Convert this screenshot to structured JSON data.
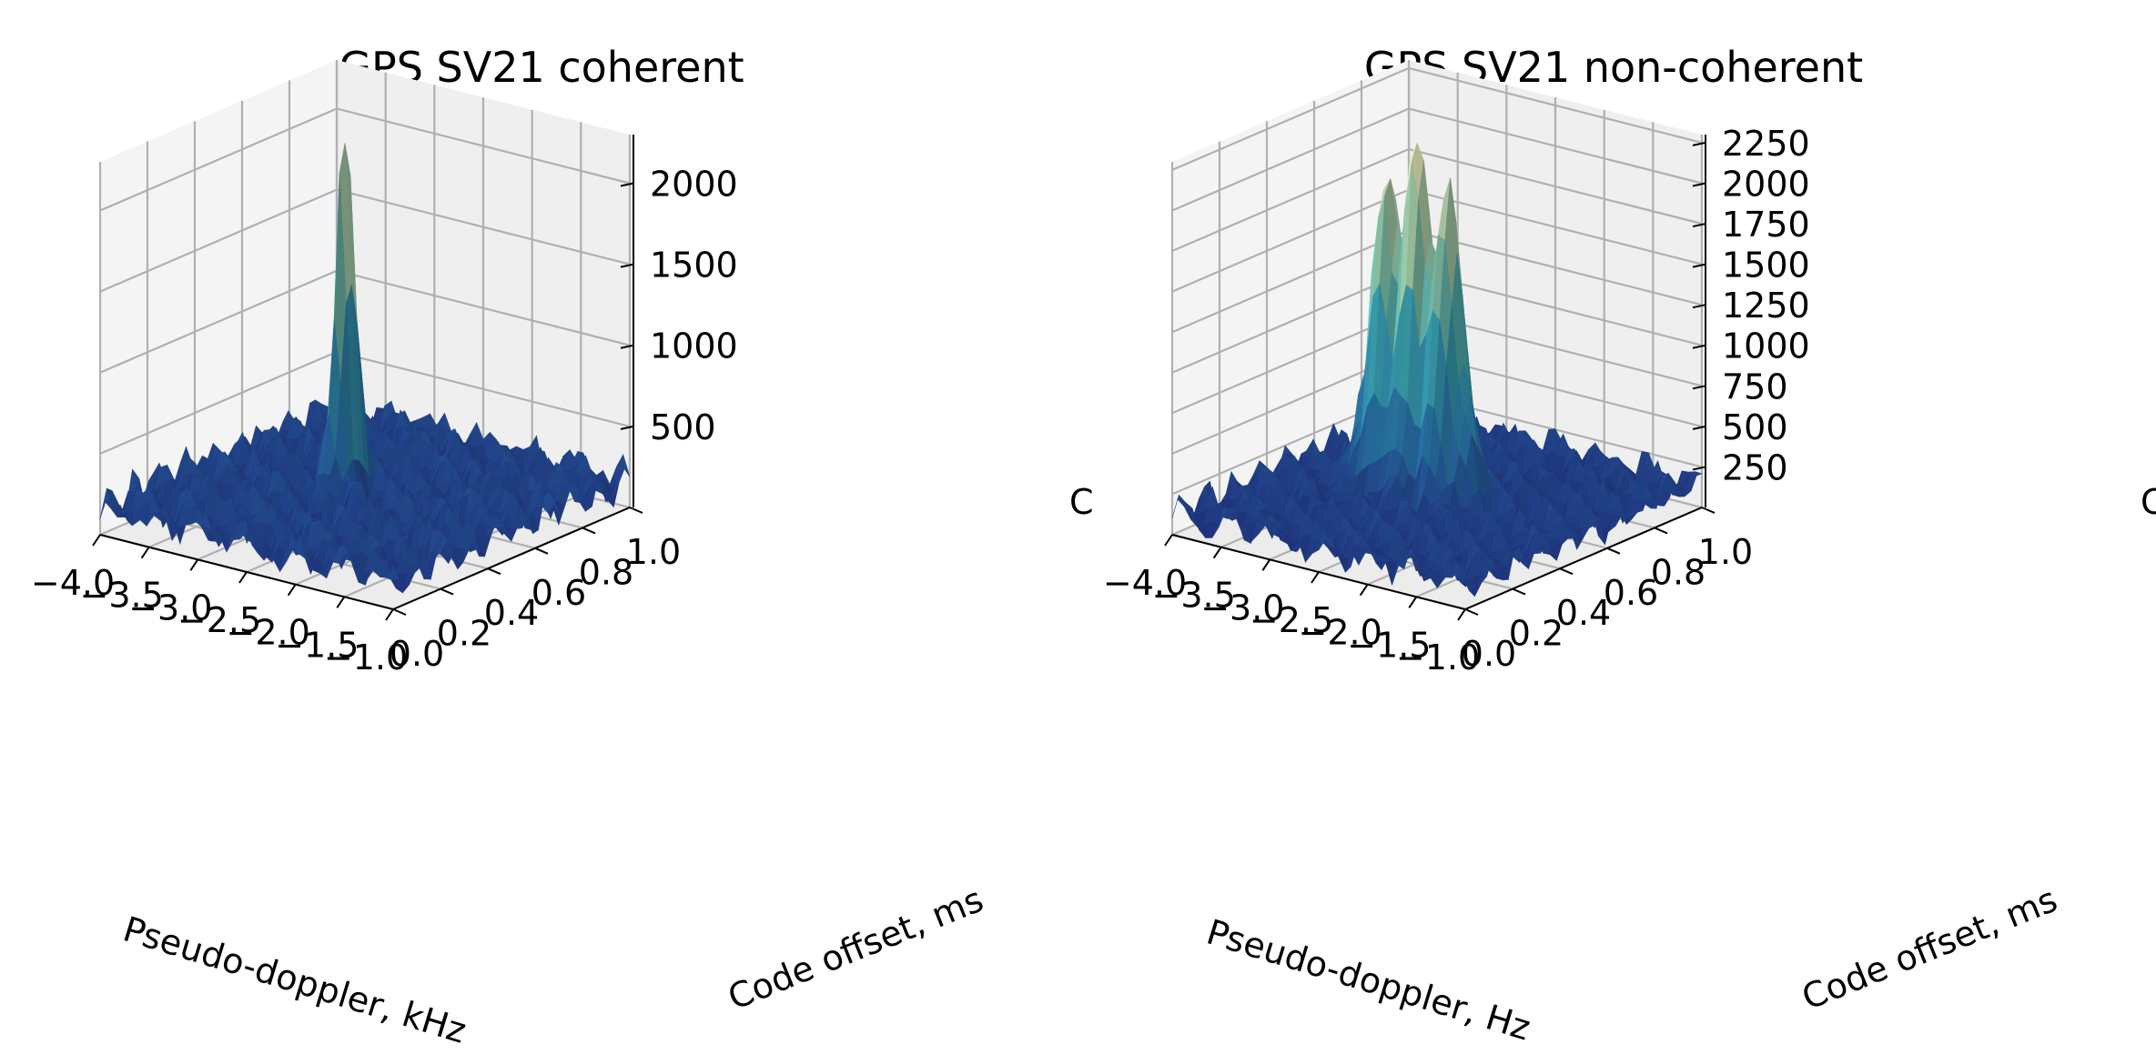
{
  "figure": {
    "background": "#ffffff",
    "pane_color": "#f2f2f2",
    "grid_color": "#b0b0b0",
    "colormap": [
      "#253494",
      "#2c7fb8",
      "#41b6c4",
      "#a1dab4",
      "#ffffcc"
    ]
  },
  "chart_data": [
    {
      "type": "surface",
      "title": "GPS SV21 coherent",
      "xlabel": "Pseudo-doppler, kHz",
      "ylabel": "Code offset, ms",
      "zlabel": "C",
      "x_ticks": [
        "−4.0",
        "−3.5",
        "−3.0",
        "−2.5",
        "−2.0",
        "−1.5",
        "−1.0"
      ],
      "y_ticks": [
        "0.0",
        "0.2",
        "0.4",
        "0.6",
        "0.8",
        "1.0"
      ],
      "z_ticks": [
        "500",
        "1000",
        "1500",
        "2000"
      ],
      "xlim": [
        -4.0,
        -1.0
      ],
      "ylim": [
        0.0,
        1.0
      ],
      "zlim": [
        0,
        2300
      ],
      "grid": true,
      "colormap": "YlGnBu_r",
      "noise_floor": 180,
      "peak": {
        "doppler": -2.7,
        "code_offset": 0.5,
        "value": 2220,
        "doppler_width": 0.06,
        "code_width": 0.04
      }
    },
    {
      "type": "surface",
      "title": "GPS SV21 non-coherent",
      "xlabel": "Pseudo-doppler, Hz",
      "ylabel": "Code offset, ms",
      "zlabel": "C",
      "x_ticks": [
        "−4.0",
        "−3.5",
        "−3.0",
        "−2.5",
        "−2.0",
        "−1.5",
        "−1.0"
      ],
      "y_ticks": [
        "0.0",
        "0.2",
        "0.4",
        "0.6",
        "0.8",
        "1.0"
      ],
      "z_ticks": [
        "250",
        "500",
        "750",
        "1000",
        "1250",
        "1500",
        "1750",
        "2000",
        "2250"
      ],
      "xlim": [
        -4.0,
        -1.0
      ],
      "ylim": [
        0.0,
        1.0
      ],
      "zlim": [
        0,
        2300
      ],
      "grid": true,
      "colormap": "YlGnBu_r",
      "noise_floor": 150,
      "peak": {
        "doppler": -2.7,
        "code_offset": 0.5,
        "value": 2250,
        "doppler_width": 0.45,
        "code_width": 0.045
      }
    }
  ]
}
